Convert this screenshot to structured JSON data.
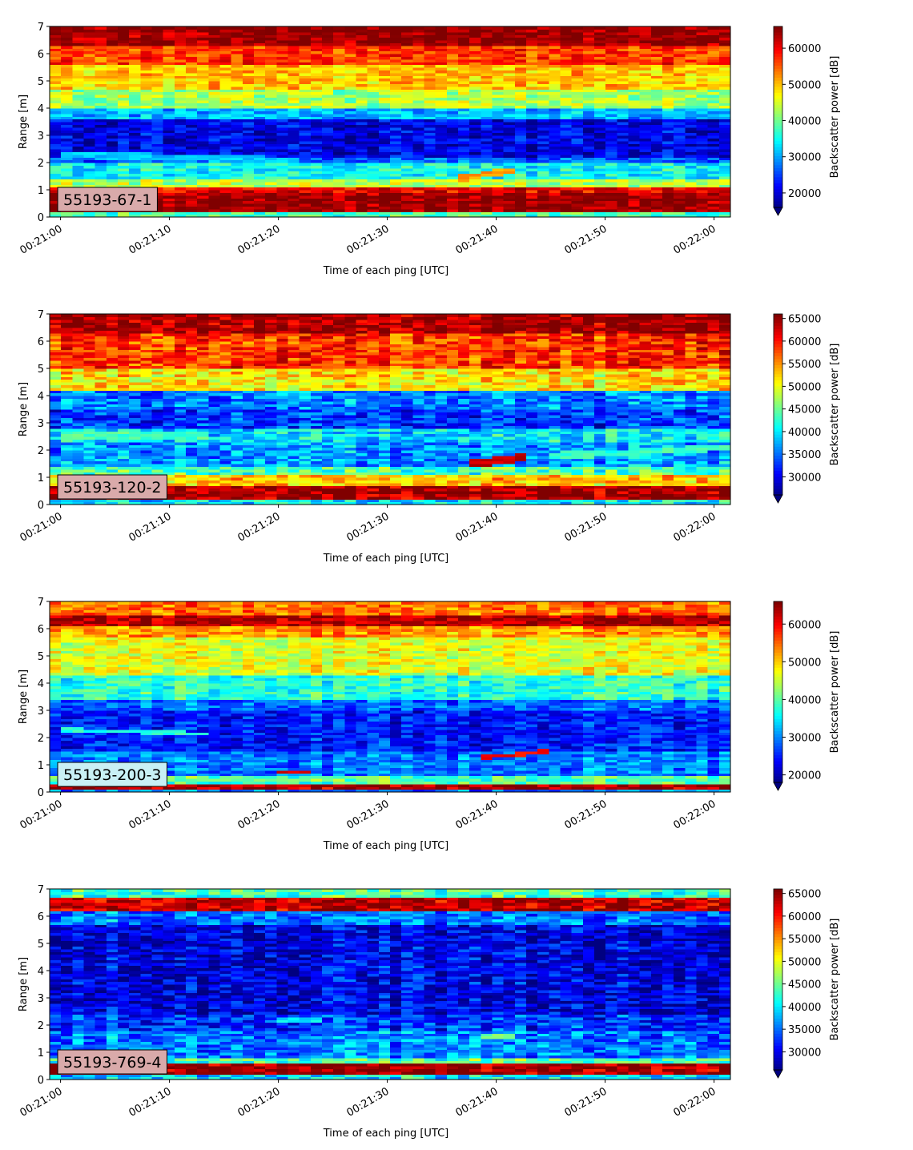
{
  "chart_data": [
    {
      "type": "heatmap",
      "panel_label": "55193-67-1",
      "xlabel": "Time of each ping [UTC]",
      "ylabel": "Range [m]",
      "colorbar_label": "Backscatter power [dB]",
      "colormap": "jet",
      "colorbar_extend": "min",
      "xlim": [
        "00:21:00",
        "00:22:00"
      ],
      "xticks": [
        "00:21:00",
        "00:21:10",
        "00:21:20",
        "00:21:30",
        "00:21:40",
        "00:21:50",
        "00:22:00"
      ],
      "ylim": [
        0,
        7
      ],
      "yticks": [
        0,
        1,
        2,
        3,
        4,
        5,
        6,
        7
      ],
      "clim": [
        16000,
        66000
      ],
      "cticks": [
        20000,
        30000,
        40000,
        50000,
        60000
      ],
      "label_box_color": "#d9aaaa",
      "bands": [
        {
          "from": 0.0,
          "to": 0.2,
          "value": 38000
        },
        {
          "from": 0.2,
          "to": 0.95,
          "value": 65000
        },
        {
          "from": 0.95,
          "to": 1.15,
          "value": 60000
        },
        {
          "from": 1.15,
          "to": 1.4,
          "value": 44000
        },
        {
          "from": 1.4,
          "to": 2.0,
          "value": 35000
        },
        {
          "from": 2.0,
          "to": 2.25,
          "value": 27000
        },
        {
          "from": 2.25,
          "to": 3.6,
          "value": 21000
        },
        {
          "from": 3.6,
          "to": 4.0,
          "value": 31000
        },
        {
          "from": 4.0,
          "to": 4.7,
          "value": 43000
        },
        {
          "from": 4.7,
          "to": 5.6,
          "value": 50000
        },
        {
          "from": 5.6,
          "to": 6.3,
          "value": 57000
        },
        {
          "from": 6.3,
          "to": 7.0,
          "value": 65000
        }
      ],
      "features": [
        {
          "t0": 0,
          "r0": 2.3,
          "t1": 22,
          "r1": 2.1,
          "width": 0.25,
          "value": 32000
        },
        {
          "t0": 37,
          "r0": 1.45,
          "t1": 42,
          "r1": 1.75,
          "width": 0.25,
          "value": 52000
        }
      ]
    },
    {
      "type": "heatmap",
      "panel_label": "55193-120-2",
      "xlabel": "Time of each ping [UTC]",
      "ylabel": "Range [m]",
      "colorbar_label": "Backscatter power [dB]",
      "colormap": "jet",
      "colorbar_extend": "min",
      "xlim": [
        "00:21:00",
        "00:22:00"
      ],
      "xticks": [
        "00:21:00",
        "00:21:10",
        "00:21:20",
        "00:21:30",
        "00:21:40",
        "00:21:50",
        "00:22:00"
      ],
      "ylim": [
        0,
        7
      ],
      "yticks": [
        0,
        1,
        2,
        3,
        4,
        5,
        6,
        7
      ],
      "clim": [
        26000,
        66000
      ],
      "cticks": [
        30000,
        35000,
        40000,
        45000,
        50000,
        55000,
        60000,
        65000
      ],
      "label_box_color": "#d9aaaa",
      "bands": [
        {
          "from": 0.0,
          "to": 0.2,
          "value": 40000
        },
        {
          "from": 0.2,
          "to": 0.75,
          "value": 65000
        },
        {
          "from": 0.75,
          "to": 1.1,
          "value": 53000
        },
        {
          "from": 1.1,
          "to": 1.4,
          "value": 44000
        },
        {
          "from": 1.4,
          "to": 2.3,
          "value": 37000
        },
        {
          "from": 2.3,
          "to": 2.8,
          "value": 40000
        },
        {
          "from": 2.8,
          "to": 3.5,
          "value": 33000
        },
        {
          "from": 3.5,
          "to": 4.2,
          "value": 36000
        },
        {
          "from": 4.2,
          "to": 5.0,
          "value": 52000
        },
        {
          "from": 5.0,
          "to": 6.3,
          "value": 59000
        },
        {
          "from": 6.3,
          "to": 7.0,
          "value": 65000
        }
      ],
      "features": [
        {
          "t0": 0,
          "r0": 2.6,
          "t1": 14,
          "r1": 2.5,
          "width": 0.3,
          "value": 44000
        },
        {
          "t0": 38,
          "r0": 1.5,
          "t1": 43,
          "r1": 1.75,
          "width": 0.3,
          "value": 63000
        },
        {
          "t0": 45,
          "r0": 1.8,
          "t1": 61,
          "r1": 2.1,
          "width": 0.25,
          "value": 43000
        }
      ]
    },
    {
      "type": "heatmap",
      "panel_label": "55193-200-3",
      "xlabel": "Time of each ping [UTC]",
      "ylabel": "Range [m]",
      "colorbar_label": "Backscatter power [dB]",
      "colormap": "jet",
      "colorbar_extend": "min",
      "xlim": [
        "00:21:00",
        "00:22:00"
      ],
      "xticks": [
        "00:21:00",
        "00:21:10",
        "00:21:20",
        "00:21:30",
        "00:21:40",
        "00:21:50",
        "00:22:00"
      ],
      "ylim": [
        0,
        7
      ],
      "yticks": [
        0,
        1,
        2,
        3,
        4,
        5,
        6,
        7
      ],
      "clim": [
        18000,
        66000
      ],
      "cticks": [
        20000,
        30000,
        40000,
        50000,
        60000
      ],
      "label_box_color": "#c8f0f5",
      "bands": [
        {
          "from": 0.0,
          "to": 0.15,
          "value": 30000
        },
        {
          "from": 0.15,
          "to": 0.3,
          "value": 64000
        },
        {
          "from": 0.3,
          "to": 0.6,
          "value": 40000
        },
        {
          "from": 0.6,
          "to": 1.5,
          "value": 30000
        },
        {
          "from": 1.5,
          "to": 3.0,
          "value": 25000
        },
        {
          "from": 3.0,
          "to": 3.4,
          "value": 29000
        },
        {
          "from": 3.4,
          "to": 4.3,
          "value": 38000
        },
        {
          "from": 4.3,
          "to": 5.7,
          "value": 47000
        },
        {
          "from": 5.7,
          "to": 6.1,
          "value": 53000
        },
        {
          "from": 6.1,
          "to": 6.5,
          "value": 64000
        },
        {
          "from": 6.5,
          "to": 7.0,
          "value": 55000
        }
      ],
      "features": [
        {
          "t0": 0,
          "r0": 2.3,
          "t1": 14,
          "r1": 2.15,
          "width": 0.15,
          "value": 38000
        },
        {
          "t0": 20,
          "r0": 0.75,
          "t1": 23,
          "r1": 0.75,
          "width": 0.15,
          "value": 62000
        },
        {
          "t0": 39,
          "r0": 1.3,
          "t1": 45,
          "r1": 1.5,
          "width": 0.15,
          "value": 60000
        }
      ]
    },
    {
      "type": "heatmap",
      "panel_label": "55193-769-4",
      "xlabel": "Time of each ping [UTC]",
      "ylabel": "Range [m]",
      "colorbar_label": "Backscatter power [dB]",
      "colormap": "jet",
      "colorbar_extend": "min",
      "xlim": [
        "00:21:00",
        "00:22:00"
      ],
      "xticks": [
        "00:21:00",
        "00:21:10",
        "00:21:20",
        "00:21:30",
        "00:21:40",
        "00:21:50",
        "00:22:00"
      ],
      "ylim": [
        0,
        7
      ],
      "yticks": [
        0,
        1,
        2,
        3,
        4,
        5,
        6,
        7
      ],
      "clim": [
        26000,
        66000
      ],
      "cticks": [
        30000,
        35000,
        40000,
        45000,
        50000,
        55000,
        60000,
        65000
      ],
      "label_box_color": "#d9aaaa",
      "bands": [
        {
          "from": 0.0,
          "to": 0.25,
          "value": 40000
        },
        {
          "from": 0.25,
          "to": 0.65,
          "value": 65000
        },
        {
          "from": 0.65,
          "to": 0.85,
          "value": 44000
        },
        {
          "from": 0.85,
          "to": 1.8,
          "value": 36000
        },
        {
          "from": 1.8,
          "to": 2.4,
          "value": 33000
        },
        {
          "from": 2.4,
          "to": 5.7,
          "value": 30000
        },
        {
          "from": 5.7,
          "to": 6.2,
          "value": 36000
        },
        {
          "from": 6.2,
          "to": 6.75,
          "value": 64000
        },
        {
          "from": 6.75,
          "to": 7.0,
          "value": 44000
        }
      ],
      "features": [
        {
          "t0": 20,
          "r0": 2.2,
          "t1": 24,
          "r1": 2.2,
          "width": 0.25,
          "value": 40000
        },
        {
          "t0": 39,
          "r0": 1.6,
          "t1": 42,
          "r1": 1.6,
          "width": 0.25,
          "value": 45000
        }
      ]
    }
  ]
}
